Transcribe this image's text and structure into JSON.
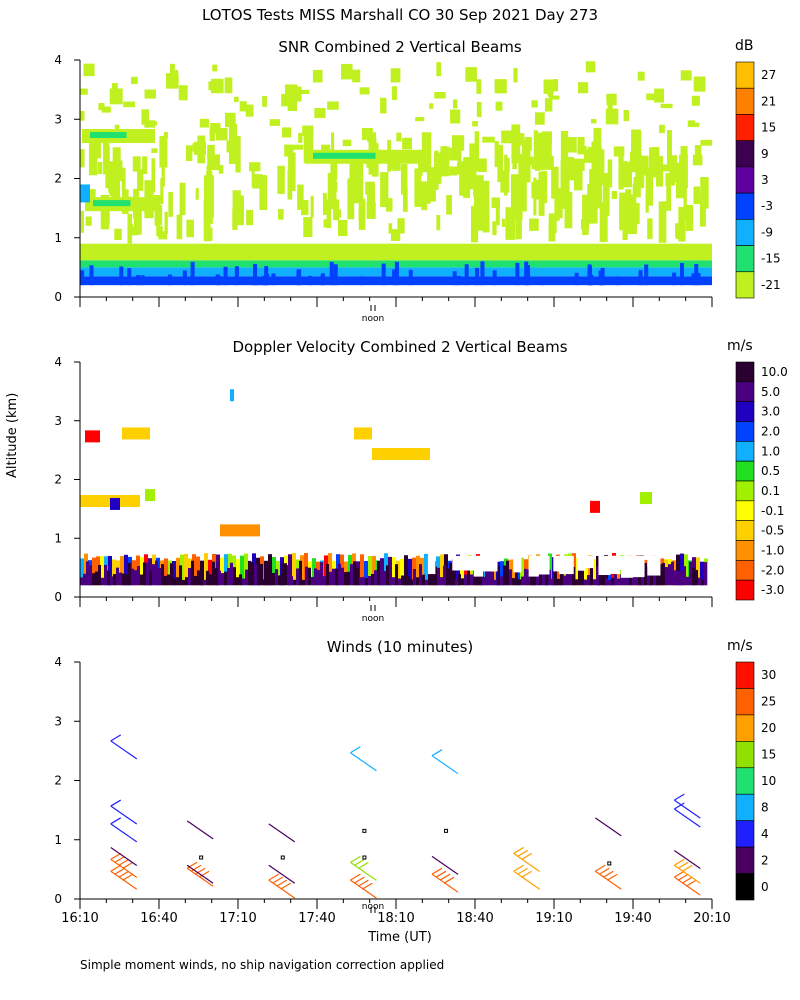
{
  "title": "LOTOS Tests MISS Marshall CO  30 Sep 2021 Day 273",
  "footer_note": "Simple moment winds, no ship navigation correction applied",
  "y_axis_label": "Altitude (km)",
  "x_axis_label": "Time (UT)",
  "noon_label": "noon",
  "chart_data": [
    {
      "type": "heatmap",
      "title": "SNR Combined 2 Vertical Beams",
      "unit": "dB",
      "ylim": [
        0,
        4
      ],
      "yticks": [
        "0",
        "1",
        "2",
        "3",
        "4"
      ],
      "colorbar": {
        "labels": [
          "27",
          "21",
          "15",
          "9",
          "3",
          "-3",
          "-9",
          "-15",
          "-21"
        ],
        "colors": [
          "#ffbf00",
          "#ff7f00",
          "#ff2000",
          "#3c0050",
          "#6000a0",
          "#0040ff",
          "#10b0ff",
          "#20e070",
          "#c0f020"
        ]
      },
      "layers": [
        {
          "from_km": 0.2,
          "to_km": 0.35,
          "color": "#0040ff"
        },
        {
          "from_km": 0.35,
          "to_km": 0.5,
          "color": "#10b0ff"
        },
        {
          "from_km": 0.5,
          "to_km": 0.62,
          "color": "#20e070"
        },
        {
          "from_km": 0.62,
          "to_km": 0.9,
          "color": "#c0f020"
        }
      ]
    },
    {
      "type": "heatmap",
      "title": "Doppler Velocity Combined 2 Vertical Beams",
      "unit": "m/s",
      "ylim": [
        0,
        4
      ],
      "yticks": [
        "0",
        "1",
        "2",
        "3",
        "4"
      ],
      "colorbar": {
        "labels": [
          "10.0",
          "5.0",
          "3.0",
          "2.0",
          "1.0",
          "0.5",
          "0.1",
          "-0.1",
          "-0.5",
          "-1.0",
          "-2.0",
          "-3.0"
        ],
        "colors": [
          "#2a0030",
          "#4a0080",
          "#2000c0",
          "#0040ff",
          "#10b0ff",
          "#20e020",
          "#a0f000",
          "#ffff00",
          "#ffd000",
          "#ff9000",
          "#ff6000",
          "#ff0000"
        ]
      }
    },
    {
      "type": "wind_barbs",
      "title": "Winds (10 minutes)",
      "unit": "m/s",
      "ylim": [
        0,
        4
      ],
      "yticks": [
        "0",
        "1",
        "2",
        "3",
        "4"
      ],
      "xticks": [
        "16:10",
        "16:40",
        "17:10",
        "17:40",
        "18:10",
        "18:40",
        "19:10",
        "19:40",
        "20:10"
      ],
      "colorbar": {
        "labels": [
          "30",
          "25",
          "20",
          "15",
          "10",
          "8",
          "4",
          "2",
          "0"
        ],
        "colors": [
          "#ff1000",
          "#ff6000",
          "#ffa000",
          "#90e000",
          "#20e070",
          "#10b0ff",
          "#2020ff",
          "#4a0060",
          "#000000"
        ]
      },
      "barb_groups": [
        {
          "time": "16:27",
          "barbs": [
            {
              "alt_km": 0.3,
              "speed": 25
            },
            {
              "alt_km": 0.5,
              "speed": 25
            },
            {
              "alt_km": 0.7,
              "speed": 2
            },
            {
              "alt_km": 1.1,
              "speed": 4
            },
            {
              "alt_km": 1.4,
              "speed": 4
            },
            {
              "alt_km": 2.5,
              "speed": 4
            }
          ]
        },
        {
          "time": "16:56",
          "barbs": [
            {
              "alt_km": 0.35,
              "speed": 25
            },
            {
              "alt_km": 0.4,
              "speed": 2
            },
            {
              "alt_km": 0.7,
              "speed": 0
            },
            {
              "alt_km": 1.15,
              "speed": 2
            }
          ]
        },
        {
          "time": "17:27",
          "barbs": [
            {
              "alt_km": 0.15,
              "speed": 25
            },
            {
              "alt_km": 0.4,
              "speed": 2
            },
            {
              "alt_km": 0.7,
              "speed": 0
            },
            {
              "alt_km": 1.1,
              "speed": 2
            }
          ]
        },
        {
          "time": "17:58",
          "barbs": [
            {
              "alt_km": 0.15,
              "speed": 25
            },
            {
              "alt_km": 0.45,
              "speed": 15
            },
            {
              "alt_km": 0.7,
              "speed": 0
            },
            {
              "alt_km": 1.15,
              "speed": 0
            },
            {
              "alt_km": 2.3,
              "speed": 8
            }
          ]
        },
        {
          "time": "18:29",
          "barbs": [
            {
              "alt_km": 0.25,
              "speed": 25
            },
            {
              "alt_km": 0.55,
              "speed": 2
            },
            {
              "alt_km": 1.15,
              "speed": 0
            },
            {
              "alt_km": 2.25,
              "speed": 8
            }
          ]
        },
        {
          "time": "19:00",
          "barbs": [
            {
              "alt_km": 0.3,
              "speed": 20
            },
            {
              "alt_km": 0.6,
              "speed": 20
            }
          ]
        },
        {
          "time": "19:31",
          "barbs": [
            {
              "alt_km": 0.3,
              "speed": 25
            },
            {
              "alt_km": 0.6,
              "speed": 0
            },
            {
              "alt_km": 1.2,
              "speed": 2
            }
          ]
        },
        {
          "time": "20:01",
          "barbs": [
            {
              "alt_km": 0.2,
              "speed": 25
            },
            {
              "alt_km": 0.4,
              "speed": 20
            },
            {
              "alt_km": 0.65,
              "speed": 2
            },
            {
              "alt_km": 1.35,
              "speed": 4
            },
            {
              "alt_km": 1.5,
              "speed": 4
            }
          ]
        }
      ]
    }
  ]
}
